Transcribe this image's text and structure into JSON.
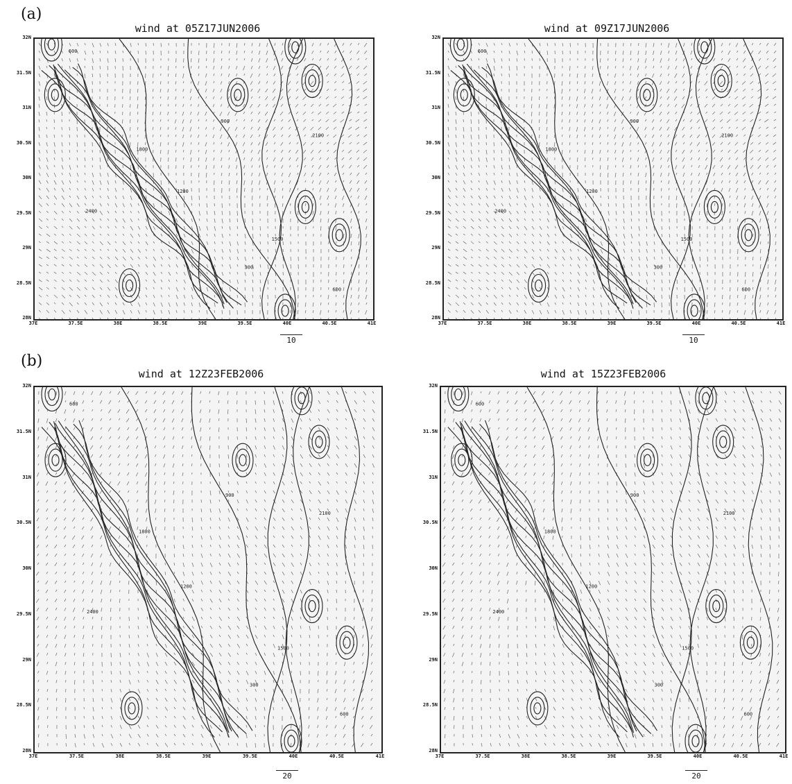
{
  "figure": {
    "parts": [
      {
        "label": "(a)",
        "panels": [
          {
            "title": "wind at 05Z17JUN2006",
            "ref_vector": "10"
          },
          {
            "title": "wind at 09Z17JUN2006",
            "ref_vector": "10"
          }
        ],
        "y_ticks": [
          "32N",
          "31.5N",
          "31N",
          "30.5N",
          "30N",
          "29.5N",
          "29N",
          "28.5N",
          "28N"
        ],
        "x_ticks": [
          "37E",
          "37.5E",
          "38E",
          "38.5E",
          "39E",
          "39.5E",
          "40E",
          "40.5E",
          "41E"
        ]
      },
      {
        "label": "(b)",
        "panels": [
          {
            "title": "wind at 12Z23FEB2006",
            "ref_vector": "20"
          },
          {
            "title": "wind at 15Z23FEB2006",
            "ref_vector": "20"
          }
        ],
        "y_ticks": [
          "32N",
          "31.5N",
          "31N",
          "30.5N",
          "30N",
          "29.5N",
          "29N",
          "28.5N",
          "28N"
        ],
        "x_ticks": [
          "37E",
          "37.5E",
          "38E",
          "38.5E",
          "39E",
          "39.5E",
          "40E",
          "40.5E",
          "41E"
        ]
      }
    ],
    "contour_labels": [
      "600",
      "900",
      "1200",
      "1500",
      "1800",
      "2100",
      "2400",
      "300"
    ]
  }
}
